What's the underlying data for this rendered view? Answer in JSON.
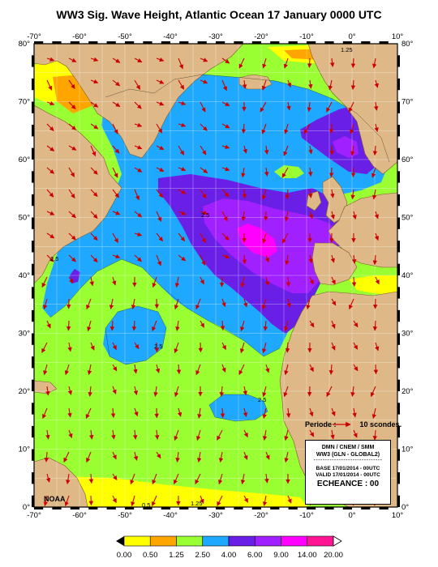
{
  "title": "WW3 Sig. Wave Height, Atlantic Ocean 17 January 0000 UTC",
  "map": {
    "lon_labels": [
      "-70°",
      "-60°",
      "-50°",
      "-40°",
      "-30°",
      "-20°",
      "-10°",
      "0°",
      "10°"
    ],
    "lon_values": [
      -70,
      -60,
      -50,
      -40,
      -30,
      -20,
      -10,
      0,
      10
    ],
    "lat_labels": [
      "0°",
      "10°",
      "20°",
      "30°",
      "40°",
      "50°",
      "60°",
      "70°",
      "80°"
    ],
    "lat_values": [
      0,
      10,
      20,
      30,
      40,
      50,
      60,
      70,
      80
    ],
    "lon_range": [
      -70,
      10
    ],
    "lat_range": [
      0,
      80
    ],
    "colors": {
      "land": "#deb887",
      "ocean_0_050": "#ffff00",
      "ocean_050_125": "#ffa500",
      "ocean_125_250": "#9aff32",
      "ocean_250_400": "#1fa8ff",
      "ocean_400_600": "#6a1fe6",
      "ocean_600_900": "#a020ff",
      "ocean_900_14": "#ff00ff",
      "ocean_14_20": "#ff1493",
      "arrow": "#cc0000",
      "grid": "#ffffff"
    },
    "contour_labels": [
      "1.25",
      "2.5",
      "2.5",
      "2.5",
      "2.5",
      "1.25",
      "0.5"
    ]
  },
  "legend_note": {
    "periode_label": "Periode :",
    "periode_value": "10 scondes."
  },
  "infobox": {
    "line1": "DMN / CNEM / SMM",
    "line2": "WW3 (GLN - GLOBAL2)",
    "dashes": "------------------------------",
    "line3": "BASE 17/01/2014 - 00UTC",
    "line4": "VALID 17/01/2014 - 00UTC",
    "line5": "ECHEANCE : 00"
  },
  "credit": "NOAA",
  "colorbar": {
    "labels": [
      "0.00",
      "0.50",
      "1.25",
      "2.50",
      "4.00",
      "6.00",
      "9.00",
      "14.00",
      "20.00"
    ],
    "colors": [
      "#ffff00",
      "#ffa500",
      "#9aff32",
      "#1fa8ff",
      "#6a1fe6",
      "#a020ff",
      "#ff00ff",
      "#ff1493"
    ]
  }
}
